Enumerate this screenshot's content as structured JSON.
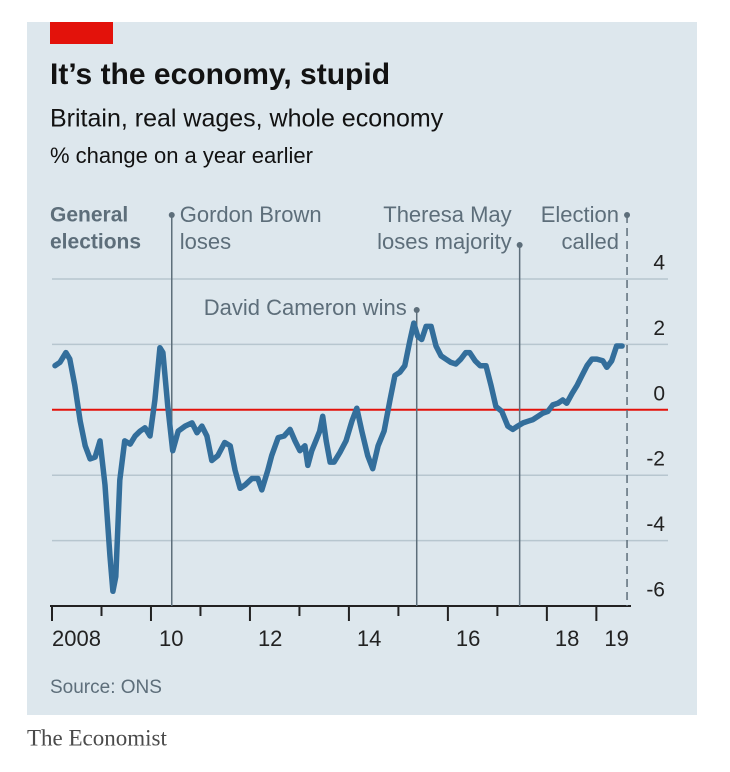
{
  "chart_data": {
    "type": "line",
    "title": "It’s the economy, stupid",
    "subtitle": "Britain, real wages, whole economy",
    "unit_label": "% change on a year earlier",
    "source": "Source: ONS",
    "footer": "The Economist",
    "annotation": [
      "General",
      "elections"
    ],
    "xlim": [
      2008,
      2019.7
    ],
    "xticks": [
      2008,
      {
        "value": 2010,
        "label": "10"
      },
      {
        "value": 2012,
        "label": "12"
      },
      {
        "value": 2014,
        "label": "14"
      },
      {
        "value": 2016,
        "label": "16"
      },
      {
        "value": 2018,
        "label": "18"
      },
      {
        "value": 2019,
        "label": "19"
      }
    ],
    "xminorticks": [
      2009,
      2011,
      2013,
      2015,
      2017
    ],
    "ylim": [
      -6,
      4
    ],
    "yticks": [
      -6,
      -4,
      -2,
      0,
      2,
      4
    ],
    "grid": true,
    "zero_line_color": "#e3120b",
    "events": [
      {
        "x": 2010.42,
        "label": [
          "Gordon Brown",
          "loses"
        ],
        "dashed": false
      },
      {
        "x": 2015.37,
        "label": [
          "David Cameron wins"
        ],
        "dashed": false
      },
      {
        "x": 2017.45,
        "label": [
          "Theresa May",
          "loses majority"
        ],
        "dashed": false
      },
      {
        "x": 2019.62,
        "label": [
          "Election",
          "called"
        ],
        "dashed": true
      }
    ],
    "x": [
      2008.06,
      2008.16,
      2008.28,
      2008.36,
      2008.46,
      2008.57,
      2008.67,
      2008.77,
      2008.87,
      2008.97,
      2009.07,
      2009.17,
      2009.23,
      2009.29,
      2009.37,
      2009.47,
      2009.58,
      2009.68,
      2009.78,
      2009.88,
      2009.98,
      2010.08,
      2010.18,
      2010.24,
      2010.34,
      2010.44,
      2010.55,
      2010.69,
      2010.83,
      2010.93,
      2011.03,
      2011.13,
      2011.23,
      2011.35,
      2011.49,
      2011.6,
      2011.7,
      2011.8,
      2011.9,
      2012.04,
      2012.16,
      2012.24,
      2012.36,
      2012.44,
      2012.57,
      2012.69,
      2012.81,
      2012.91,
      2013.01,
      2013.11,
      2013.17,
      2013.25,
      2013.33,
      2013.41,
      2013.47,
      2013.54,
      2013.62,
      2013.7,
      2013.82,
      2013.94,
      2014.06,
      2014.16,
      2014.26,
      2014.38,
      2014.48,
      2014.59,
      2014.71,
      2014.83,
      2014.93,
      2015.03,
      2015.13,
      2015.23,
      2015.31,
      2015.39,
      2015.47,
      2015.56,
      2015.66,
      2015.76,
      2015.86,
      2015.96,
      2016.06,
      2016.16,
      2016.26,
      2016.36,
      2016.44,
      2016.55,
      2016.65,
      2016.77,
      2016.87,
      2016.97,
      2017.09,
      2017.21,
      2017.31,
      2017.41,
      2017.52,
      2017.62,
      2017.72,
      2017.82,
      2017.92,
      2018.02,
      2018.12,
      2018.22,
      2018.32,
      2018.4,
      2018.51,
      2018.61,
      2018.71,
      2018.81,
      2018.91,
      2019.01,
      2019.13,
      2019.21,
      2019.31,
      2019.41,
      2019.52
    ],
    "series": [
      {
        "name": "Real wages",
        "color": "#336e9b",
        "values": [
          1.35,
          1.45,
          1.75,
          1.55,
          0.75,
          -0.35,
          -1.1,
          -1.5,
          -1.45,
          -0.95,
          -2.3,
          -4.45,
          -5.55,
          -5.1,
          -2.15,
          -0.95,
          -1.05,
          -0.8,
          -0.65,
          -0.55,
          -0.8,
          0.3,
          1.9,
          1.75,
          0.1,
          -1.25,
          -0.65,
          -0.5,
          -0.4,
          -0.7,
          -0.5,
          -0.8,
          -1.55,
          -1.4,
          -1.0,
          -1.1,
          -1.85,
          -2.4,
          -2.3,
          -2.1,
          -2.1,
          -2.45,
          -1.85,
          -1.4,
          -0.85,
          -0.8,
          -0.6,
          -0.95,
          -1.25,
          -1.1,
          -1.7,
          -1.25,
          -0.95,
          -0.65,
          -0.2,
          -0.95,
          -1.6,
          -1.6,
          -1.3,
          -0.95,
          -0.35,
          0.05,
          -0.65,
          -1.4,
          -1.8,
          -1.1,
          -0.65,
          0.3,
          1.05,
          1.15,
          1.35,
          2.1,
          2.65,
          2.25,
          2.15,
          2.55,
          2.55,
          1.95,
          1.65,
          1.55,
          1.45,
          1.4,
          1.55,
          1.75,
          1.75,
          1.5,
          1.35,
          1.35,
          0.75,
          0.1,
          -0.05,
          -0.5,
          -0.6,
          -0.5,
          -0.4,
          -0.35,
          -0.3,
          -0.2,
          -0.1,
          -0.05,
          0.15,
          0.2,
          0.3,
          0.2,
          0.5,
          0.75,
          1.05,
          1.35,
          1.55,
          1.55,
          1.5,
          1.3,
          1.5,
          1.95,
          1.95
        ]
      }
    ]
  }
}
